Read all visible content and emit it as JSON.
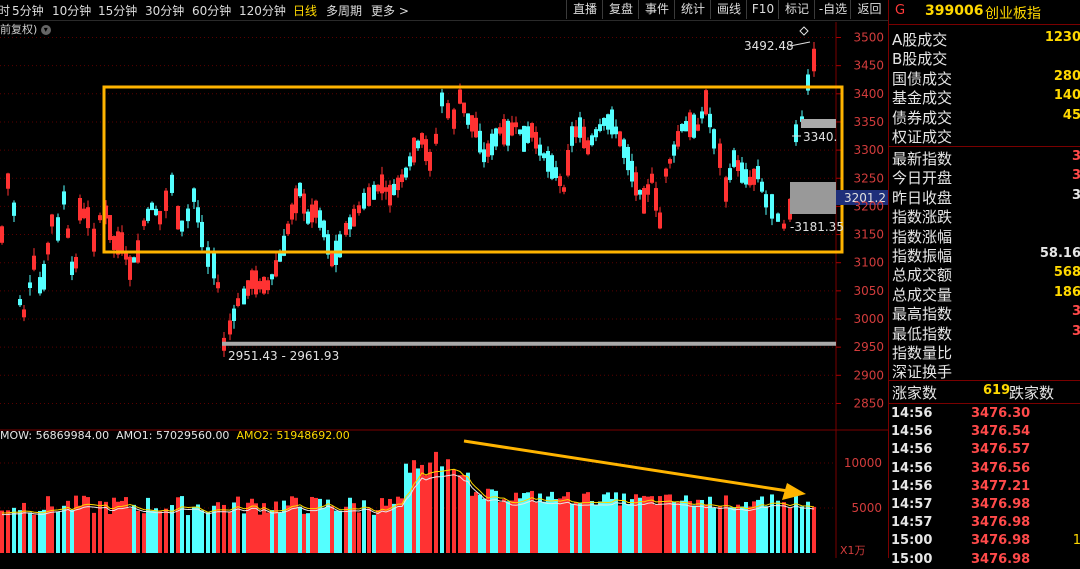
{
  "toolbar": {
    "periods": [
      "分时",
      "5分钟",
      "10分钟",
      "15分钟",
      "30分钟",
      "60分钟",
      "120分钟",
      "日线",
      "多周期",
      "更多 >"
    ],
    "active_period": "日线",
    "buttons": [
      "直播",
      "复盘",
      "事件",
      "统计",
      "画线",
      "F10",
      "标记",
      "-自选",
      "返回"
    ],
    "fuquan_label": "前复权"
  },
  "colors": {
    "up": "#ff3232",
    "down": "#54ffff",
    "box": "#ffb400",
    "arrow": "#ffb400",
    "accent_text": "#ffd800"
  },
  "chart_data": {
    "type": "candlestick",
    "price_axis": {
      "ticks": [
        3500,
        3450,
        3400,
        3350,
        3300,
        3250,
        3200,
        3150,
        3100,
        3050,
        3000,
        2950,
        2900,
        2850
      ],
      "range": [
        2825,
        3520
      ]
    },
    "price_labels": {
      "high": "3492.48",
      "mid": "3340.",
      "low": "3181.35",
      "bottom_range": "2951.43 - 2961.93",
      "current": "3201.2"
    },
    "volume_axis": {
      "ticks": [
        10000,
        5000
      ],
      "unit": "X1万"
    },
    "volume_legend": {
      "mow": "MOW: 56869984.00",
      "amo1": "AMO1: 57029560.00",
      "amo2": "AMO2: 51948692.00"
    },
    "annotations": {
      "box": "consolidation-box",
      "arrow": "volume-decline-arrow"
    }
  },
  "sidebar": {
    "g_mark": "G",
    "code": "399006",
    "name": "创业板指",
    "stats": [
      {
        "label": "A股成交",
        "value": "1230",
        "color": "#ffd800"
      },
      {
        "label": "B股成交",
        "value": "",
        "color": "#ffd800"
      },
      {
        "label": "国债成交",
        "value": "280",
        "color": "#ffd800"
      },
      {
        "label": "基金成交",
        "value": "140",
        "color": "#ffd800"
      },
      {
        "label": "债券成交",
        "value": "45",
        "color": "#ffd800"
      },
      {
        "label": "权证成交",
        "value": "",
        "color": "#ffd800"
      }
    ],
    "index_stats": [
      {
        "label": "最新指数",
        "value": "3",
        "color": "#ff4a4a"
      },
      {
        "label": "今日开盘",
        "value": "3",
        "color": "#ff4a4a"
      },
      {
        "label": "昨日收盘",
        "value": "3",
        "color": "#e6e6e6"
      },
      {
        "label": "指数涨跌",
        "value": "",
        "color": "#ff4a4a"
      },
      {
        "label": "指数涨幅",
        "value": "",
        "color": "#ff4a4a"
      },
      {
        "label": "指数振幅",
        "value": "58.16",
        "color": "#e6e6e6"
      },
      {
        "label": "总成交额",
        "value": "568",
        "color": "#ffd800"
      },
      {
        "label": "总成交量",
        "value": "186",
        "color": "#ffd800"
      },
      {
        "label": "最高指数",
        "value": "3",
        "color": "#ff4a4a"
      },
      {
        "label": "最低指数",
        "value": "3",
        "color": "#ff4a4a"
      },
      {
        "label": "指数量比",
        "value": "",
        "color": "#e6e6e6"
      },
      {
        "label": "深证换手",
        "value": "",
        "color": "#e6e6e6"
      }
    ],
    "breadth": {
      "up_label": "涨家数",
      "up_value": "619",
      "down_label": "跌家数"
    },
    "ticks": [
      {
        "time": "14:56",
        "price": "3476.30",
        "vol": ""
      },
      {
        "time": "14:56",
        "price": "3476.54",
        "vol": ""
      },
      {
        "time": "14:56",
        "price": "3476.57",
        "vol": ""
      },
      {
        "time": "14:56",
        "price": "3476.56",
        "vol": ""
      },
      {
        "time": "14:56",
        "price": "3477.21",
        "vol": ""
      },
      {
        "time": "14:57",
        "price": "3476.98",
        "vol": ""
      },
      {
        "time": "14:57",
        "price": "3476.98",
        "vol": ""
      },
      {
        "time": "15:00",
        "price": "3476.98",
        "vol": "1"
      },
      {
        "time": "15:00",
        "price": "3476.98",
        "vol": ""
      }
    ]
  }
}
